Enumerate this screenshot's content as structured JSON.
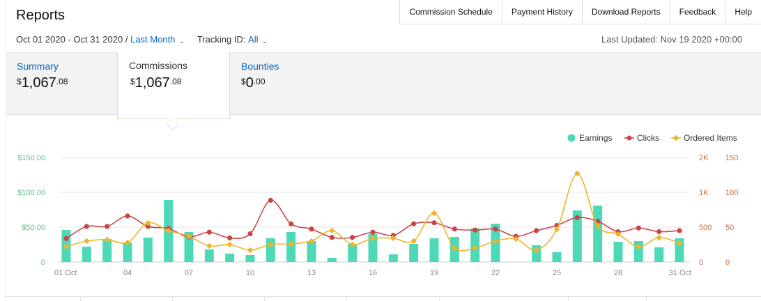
{
  "header": {
    "title": "Reports",
    "nav": [
      "Commission Schedule",
      "Payment History",
      "Download Reports",
      "Feedback",
      "Help"
    ]
  },
  "filters": {
    "date_range": "Oct 01 2020 - Oct 31 2020",
    "date_sep": "/",
    "period": "Last Month",
    "tracking_label": "Tracking ID:",
    "tracking_value": "All",
    "last_updated": "Last Updated: Nov 19 2020 +00:00"
  },
  "summary": {
    "summary": {
      "label": "Summary",
      "currency": "$",
      "whole": "1,067",
      "cents": ".08"
    },
    "commissions": {
      "label": "Commissions",
      "currency": "$",
      "whole": "1,067",
      "cents": ".08"
    },
    "bounties": {
      "label": "Bounties",
      "currency": "$",
      "whole": "0",
      "cents": ".00"
    }
  },
  "colors": {
    "earnings": "#4dd9b8",
    "clicks": "#c94545",
    "ordered_items": "#f0b429",
    "left_axis_text": "#5cbf8a",
    "right_axis_text": "#c46a3c",
    "link": "#0066c0"
  },
  "chart_data": {
    "type": "bar",
    "x": [
      1,
      2,
      3,
      4,
      5,
      6,
      7,
      8,
      9,
      10,
      11,
      12,
      13,
      14,
      15,
      16,
      17,
      18,
      19,
      20,
      21,
      22,
      23,
      24,
      25,
      26,
      27,
      28,
      29,
      30,
      31
    ],
    "x_tick_labels": [
      {
        "day": 1,
        "label": "01 Oct"
      },
      {
        "day": 4,
        "label": "04"
      },
      {
        "day": 7,
        "label": "07"
      },
      {
        "day": 10,
        "label": "10"
      },
      {
        "day": 13,
        "label": "13"
      },
      {
        "day": 16,
        "label": "16"
      },
      {
        "day": 19,
        "label": "19"
      },
      {
        "day": 22,
        "label": "22"
      },
      {
        "day": 25,
        "label": "25"
      },
      {
        "day": 28,
        "label": "28"
      },
      {
        "day": 31,
        "label": "31 Oct"
      }
    ],
    "y_left": {
      "ticks": [
        "$150.00",
        "$100.00",
        "$50.00",
        "0"
      ],
      "range": [
        0,
        150
      ]
    },
    "y_clicks": {
      "ticks": [
        "2K",
        "1K",
        "500",
        "0"
      ],
      "range": [
        0,
        2000
      ]
    },
    "y_items": {
      "ticks": [
        "150",
        "100",
        "50",
        "0"
      ],
      "range": [
        0,
        150
      ]
    },
    "legend": [
      "Earnings",
      "Clicks",
      "Ordered Items"
    ],
    "legend_position": "top-right",
    "grid": true,
    "series": [
      {
        "name": "Earnings",
        "type": "bar",
        "values": [
          46,
          22,
          33,
          28,
          35,
          89,
          43,
          18,
          12,
          10,
          34,
          43,
          30,
          6,
          26,
          40,
          11,
          26,
          34,
          36,
          48,
          55,
          0,
          24,
          14,
          74,
          81,
          29,
          30,
          21,
          34
        ]
      },
      {
        "name": "Clicks",
        "type": "line",
        "values": [
          450,
          680,
          680,
          880,
          680,
          640,
          480,
          570,
          460,
          540,
          1180,
          730,
          630,
          470,
          470,
          570,
          510,
          730,
          750,
          630,
          610,
          630,
          490,
          600,
          700,
          850,
          780,
          580,
          650,
          580,
          600
        ]
      },
      {
        "name": "Ordered Items",
        "type": "line",
        "values": [
          22,
          30,
          32,
          28,
          56,
          45,
          37,
          23,
          25,
          17,
          25,
          26,
          30,
          45,
          25,
          34,
          34,
          30,
          70,
          20,
          20,
          30,
          33,
          17,
          47,
          127,
          52,
          40,
          22,
          35,
          27
        ]
      }
    ]
  }
}
